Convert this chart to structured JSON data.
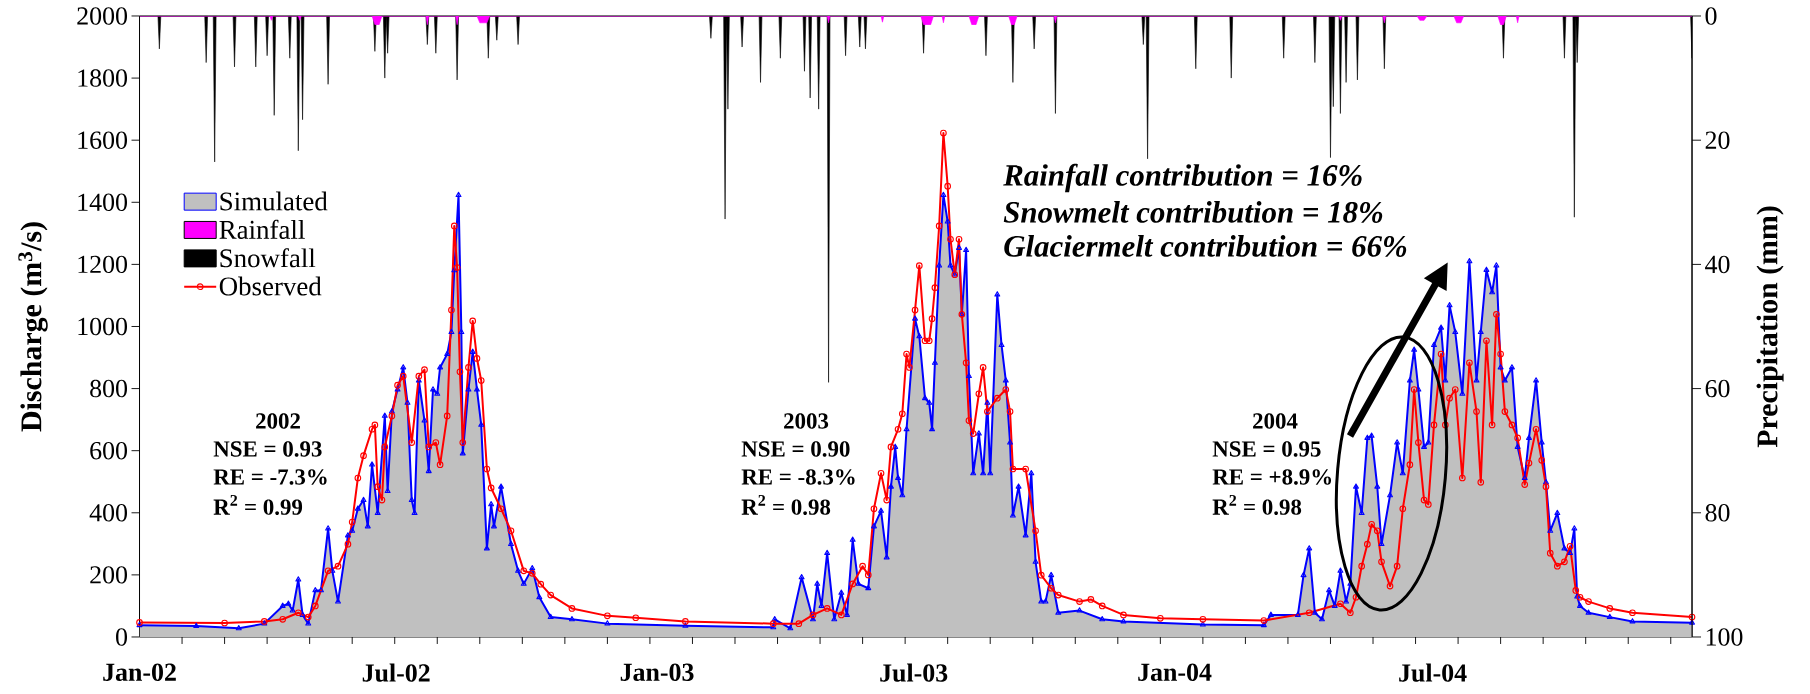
{
  "chart_data": {
    "type": "line",
    "ylabel": "Discharge (m$^{3}$/s)",
    "y2label": "Precipitation (mm)",
    "xlim": [
      "2002-01-01",
      "2004-12-31"
    ],
    "xticks": [
      {
        "value": "2002-01-01",
        "label": "Jan-02"
      },
      {
        "value": "2002-01-31",
        "label": null
      },
      {
        "value": "2002-03-02",
        "label": null
      },
      {
        "value": "2002-04-01",
        "label": null
      },
      {
        "value": "2002-05-01",
        "label": null
      },
      {
        "value": "2002-05-31",
        "label": null
      },
      {
        "value": "2002-06-30",
        "label": null
      },
      {
        "value": "2002-07-01",
        "label": "Jul-02"
      },
      {
        "value": "2002-07-30",
        "label": null
      },
      {
        "value": "2002-08-29",
        "label": null
      },
      {
        "value": "2002-09-28",
        "label": null
      },
      {
        "value": "2002-10-28",
        "label": null
      },
      {
        "value": "2002-11-27",
        "label": null
      },
      {
        "value": "2002-12-27",
        "label": null
      },
      {
        "value": "2003-01-01",
        "label": "Jan-03"
      },
      {
        "value": "2003-01-26",
        "label": null
      },
      {
        "value": "2003-02-25",
        "label": null
      },
      {
        "value": "2003-03-27",
        "label": null
      },
      {
        "value": "2003-04-26",
        "label": null
      },
      {
        "value": "2003-05-26",
        "label": null
      },
      {
        "value": "2003-06-25",
        "label": null
      },
      {
        "value": "2003-07-01",
        "label": "Jul-03"
      },
      {
        "value": "2003-07-25",
        "label": null
      },
      {
        "value": "2003-08-24",
        "label": null
      },
      {
        "value": "2003-09-23",
        "label": null
      },
      {
        "value": "2003-10-23",
        "label": null
      },
      {
        "value": "2003-11-22",
        "label": null
      },
      {
        "value": "2003-12-22",
        "label": null
      },
      {
        "value": "2004-01-01",
        "label": "Jan-04"
      },
      {
        "value": "2004-01-21",
        "label": null
      },
      {
        "value": "2004-02-20",
        "label": null
      },
      {
        "value": "2004-03-21",
        "label": null
      },
      {
        "value": "2004-04-20",
        "label": null
      },
      {
        "value": "2004-05-20",
        "label": null
      },
      {
        "value": "2004-06-19",
        "label": null
      },
      {
        "value": "2004-07-01",
        "label": "Jul-04"
      },
      {
        "value": "2004-07-19",
        "label": null
      },
      {
        "value": "2004-08-18",
        "label": null
      },
      {
        "value": "2004-09-17",
        "label": null
      },
      {
        "value": "2004-10-17",
        "label": null
      },
      {
        "value": "2004-11-16",
        "label": null
      },
      {
        "value": "2004-12-16",
        "label": null
      }
    ],
    "ylim": [
      0,
      2000
    ],
    "yticks": [
      0,
      200,
      400,
      600,
      800,
      1000,
      1200,
      1400,
      1600,
      1800,
      2000
    ],
    "y2lim": [
      100,
      0
    ],
    "y2ticks": [
      0,
      20,
      40,
      60,
      80,
      100
    ],
    "legend": "top left",
    "annotations": [
      "2002",
      "NSE = 0.93",
      "RE = -7.3%",
      "R$^{2}$ = 0.99",
      "2003",
      "NSE = 0.90",
      "RE = -8.3%",
      "R$^{2}$ = 0.98",
      "2004",
      "NSE = 0.95",
      "RE = +8.9%",
      "R$^{2}$ = 0.98",
      "Rainfall contribution = 16%",
      "Snowmelt contribution = 18%",
      "Glaciermelt contribution = 66%"
    ],
    "series": [
      {
        "name": "Simulated",
        "type": "area",
        "color": "#c0c0c0",
        "marker": "triangle",
        "x": [
          "2002-01-01",
          "2002-02-10",
          "2002-03-12",
          "2002-03-30",
          "2002-04-12",
          "2002-04-16",
          "2002-04-19",
          "2002-04-23",
          "2002-04-26",
          "2002-04-30",
          "2002-05-05",
          "2002-05-09",
          "2002-05-14",
          "2002-05-17",
          "2002-05-21",
          "2002-05-28",
          "2002-05-31",
          "2002-06-04",
          "2002-06-08",
          "2002-06-11",
          "2002-06-14",
          "2002-06-18",
          "2002-06-23",
          "2002-06-25",
          "2002-06-28",
          "2002-07-02",
          "2002-07-06",
          "2002-07-09",
          "2002-07-12",
          "2002-07-14",
          "2002-07-17",
          "2002-07-21",
          "2002-07-24",
          "2002-07-27",
          "2002-07-30",
          "2002-08-01",
          "2002-08-06",
          "2002-08-09",
          "2002-08-11",
          "2002-08-14",
          "2002-08-16",
          "2002-08-17",
          "2002-08-21",
          "2002-08-24",
          "2002-08-27",
          "2002-08-30",
          "2002-09-03",
          "2002-09-06",
          "2002-09-08",
          "2002-09-13",
          "2002-09-20",
          "2002-09-25",
          "2002-09-29",
          "2002-10-05",
          "2002-10-10",
          "2002-10-18",
          "2002-11-02",
          "2002-11-27",
          "2003-01-21",
          "2003-03-24",
          "2003-03-25",
          "2003-04-05",
          "2003-04-13",
          "2003-04-21",
          "2003-04-24",
          "2003-04-27",
          "2003-05-01",
          "2003-05-06",
          "2003-05-11",
          "2003-05-15",
          "2003-05-19",
          "2003-05-23",
          "2003-05-30",
          "2003-06-03",
          "2003-06-08",
          "2003-06-12",
          "2003-06-15",
          "2003-06-18",
          "2003-06-20",
          "2003-06-23",
          "2003-06-26",
          "2003-07-02",
          "2003-07-05",
          "2003-07-09",
          "2003-07-12",
          "2003-07-14",
          "2003-07-16",
          "2003-07-19",
          "2003-07-22",
          "2003-07-25",
          "2003-07-27",
          "2003-07-30",
          "2003-08-02",
          "2003-08-04",
          "2003-08-07",
          "2003-08-09",
          "2003-08-12",
          "2003-08-16",
          "2003-08-19",
          "2003-08-22",
          "2003-08-24",
          "2003-08-29",
          "2003-09-01",
          "2003-09-04",
          "2003-09-07",
          "2003-09-09",
          "2003-09-13",
          "2003-09-18",
          "2003-09-22",
          "2003-09-25",
          "2003-09-29",
          "2003-10-02",
          "2003-10-06",
          "2003-10-11",
          "2003-10-26",
          "2003-11-11",
          "2003-11-26",
          "2004-01-21",
          "2004-03-04",
          "2004-03-09",
          "2004-03-28",
          "2004-04-01",
          "2004-04-05",
          "2004-04-09",
          "2004-04-14",
          "2004-04-19",
          "2004-04-23",
          "2004-04-27",
          "2004-05-01",
          "2004-05-04",
          "2004-05-08",
          "2004-05-12",
          "2004-05-16",
          "2004-05-19",
          "2004-05-23",
          "2004-05-26",
          "2004-06-01",
          "2004-06-06",
          "2004-06-10",
          "2004-06-15",
          "2004-06-18",
          "2004-06-21",
          "2004-06-25",
          "2004-06-28",
          "2004-07-02",
          "2004-07-07",
          "2004-07-10",
          "2004-07-13",
          "2004-07-17",
          "2004-07-22",
          "2004-07-27",
          "2004-08-01",
          "2004-08-04",
          "2004-08-08",
          "2004-08-12",
          "2004-08-15",
          "2004-08-18",
          "2004-08-21",
          "2004-08-26",
          "2004-08-30",
          "2004-09-04",
          "2004-09-07",
          "2004-09-12",
          "2004-09-16",
          "2004-09-19",
          "2004-09-22",
          "2004-09-27",
          "2004-10-02",
          "2004-10-06",
          "2004-10-09",
          "2004-10-11",
          "2004-10-13",
          "2004-10-19",
          "2004-11-03",
          "2004-11-19",
          "2004-12-31"
        ],
        "values": [
          38,
          35,
          28,
          43,
          100,
          107,
          85,
          185,
          71,
          43,
          150,
          150,
          349,
          213,
          114,
          327,
          342,
          413,
          441,
          356,
          555,
          399,
          712,
          470,
          726,
          797,
          868,
          754,
          441,
          399,
          826,
          697,
          534,
          797,
          783,
          868,
          911,
          982,
          1181,
          1423,
          982,
          591,
          797,
          918,
          797,
          683,
          285,
          427,
          356,
          484,
          299,
          213,
          171,
          221,
          128,
          64,
          57,
          43,
          36,
          31,
          57,
          28,
          192,
          57,
          171,
          100,
          270,
          57,
          142,
          71,
          313,
          171,
          157,
          356,
          406,
          256,
          484,
          612,
          512,
          456,
          669,
          1025,
          968,
          769,
          754,
          669,
          883,
          1196,
          1423,
          1338,
          1196,
          1167,
          1253,
          1039,
          1246,
          840,
          527,
          655,
          527,
          754,
          527,
          1103,
          940,
          826,
          626,
          391,
          484,
          327,
          527,
          242,
          114,
          114,
          199,
          78,
          85,
          57,
          50,
          40,
          38,
          71,
          71,
          199,
          285,
          78,
          57,
          150,
          100,
          213,
          114,
          171,
          484,
          399,
          641,
          648,
          484,
          299,
          456,
          626,
          527,
          826,
          925,
          797,
          612,
          626,
          940,
          996,
          826,
          1068,
          982,
          783,
          1210,
          826,
          982,
          1182,
          1110,
          1196,
          868,
          826,
          868,
          612,
          512,
          641,
          826,
          626,
          498,
          342,
          399,
          285,
          270,
          349,
          130,
          100,
          78,
          64,
          50,
          46
        ]
      },
      {
        "name": "Rainfall",
        "type": "area",
        "axis": "y2",
        "color": "#ff00ff",
        "x": [
          "2002-01-01",
          "2002-04-03",
          "2002-04-04",
          "2002-04-05",
          "2002-04-23",
          "2002-04-24",
          "2002-04-25",
          "2002-06-14",
          "2002-06-16",
          "2002-06-19",
          "2002-06-21",
          "2002-07-22",
          "2002-07-23",
          "2002-07-24",
          "2002-08-12",
          "2002-08-13",
          "2002-08-14",
          "2002-08-27",
          "2002-08-29",
          "2002-09-03",
          "2002-09-05",
          "2003-05-01",
          "2003-05-02",
          "2003-05-03",
          "2003-06-08",
          "2003-06-09",
          "2003-06-10",
          "2003-07-06",
          "2003-07-08",
          "2003-07-13",
          "2003-07-15",
          "2003-07-21",
          "2003-07-22",
          "2003-07-23",
          "2003-08-09",
          "2003-08-11",
          "2003-08-14",
          "2003-08-16",
          "2003-09-06",
          "2003-09-08",
          "2003-09-10",
          "2003-09-12",
          "2003-10-08",
          "2003-10-09",
          "2003-10-10",
          "2004-04-26",
          "2004-04-27",
          "2004-04-28",
          "2004-05-27",
          "2004-05-28",
          "2004-05-29",
          "2004-06-20",
          "2004-06-22",
          "2004-06-25",
          "2004-06-27",
          "2004-07-16",
          "2004-07-18",
          "2004-07-21",
          "2004-07-23",
          "2004-08-16",
          "2004-08-18",
          "2004-08-20",
          "2004-08-22",
          "2004-08-29",
          "2004-08-30",
          "2004-08-31",
          "2004-12-31"
        ],
        "values": [
          0,
          0,
          0.7,
          0,
          0,
          0.7,
          0,
          0,
          1.4,
          1.4,
          0,
          0,
          1.4,
          0,
          0,
          1.4,
          0,
          0,
          1.1,
          1.1,
          0,
          0,
          1.1,
          0,
          0,
          1,
          0,
          0,
          1.4,
          1.4,
          0,
          0,
          1.1,
          0,
          0,
          1.4,
          1.4,
          0,
          0,
          1.4,
          1.4,
          0,
          0,
          1.1,
          0,
          0,
          0.7,
          0,
          0,
          1.1,
          0,
          0,
          0.7,
          0.7,
          0,
          0,
          1.1,
          1.1,
          0,
          0,
          1.4,
          1.4,
          0,
          0,
          1.1,
          0,
          0
        ]
      },
      {
        "name": "Snowfall",
        "type": "area",
        "axis": "y2",
        "color": "#000000",
        "x": [
          "2002-01-01",
          "2002-01-14",
          "2002-01-15",
          "2002-01-16",
          "2002-02-16",
          "2002-02-17",
          "2002-02-18",
          "2002-02-22",
          "2002-02-23",
          "2002-02-24",
          "2002-03-08",
          "2002-03-09",
          "2002-03-10",
          "2002-03-23",
          "2002-03-24",
          "2002-03-25",
          "2002-03-31",
          "2002-04-01",
          "2002-04-02",
          "2002-04-05",
          "2002-04-06",
          "2002-04-07",
          "2002-04-16",
          "2002-04-17",
          "2002-04-18",
          "2002-04-22",
          "2002-04-23",
          "2002-04-24",
          "2002-04-25",
          "2002-04-26",
          "2002-04-27",
          "2002-05-13",
          "2002-05-14",
          "2002-05-15",
          "2002-06-15",
          "2002-06-16",
          "2002-06-17",
          "2002-06-22",
          "2002-06-23",
          "2002-06-24",
          "2002-06-25",
          "2002-06-26",
          "2002-07-22",
          "2002-07-23",
          "2002-07-24",
          "2002-07-28",
          "2002-07-29",
          "2002-07-30",
          "2002-08-12",
          "2002-08-13",
          "2002-08-14",
          "2002-09-03",
          "2002-09-04",
          "2002-09-05",
          "2002-09-09",
          "2002-09-10",
          "2002-09-11",
          "2002-09-24",
          "2002-09-25",
          "2002-09-26",
          "2003-02-07",
          "2003-02-08",
          "2003-02-09",
          "2003-02-17",
          "2003-02-18",
          "2003-02-19",
          "2003-02-20",
          "2003-02-21",
          "2003-03-01",
          "2003-03-02",
          "2003-03-03",
          "2003-03-14",
          "2003-03-15",
          "2003-03-16",
          "2003-03-28",
          "2003-03-29",
          "2003-03-30",
          "2003-04-14",
          "2003-04-15",
          "2003-04-16",
          "2003-04-18",
          "2003-04-19",
          "2003-04-20",
          "2003-04-24",
          "2003-04-25",
          "2003-04-26",
          "2003-05-01",
          "2003-05-02",
          "2003-05-03",
          "2003-05-13",
          "2003-05-14",
          "2003-05-15",
          "2003-05-23",
          "2003-05-24",
          "2003-05-25",
          "2003-05-27",
          "2003-05-28",
          "2003-05-29",
          "2003-07-07",
          "2003-07-08",
          "2003-07-09",
          "2003-08-20",
          "2003-08-21",
          "2003-08-22",
          "2003-09-08",
          "2003-09-09",
          "2003-09-10",
          "2003-09-23",
          "2003-09-24",
          "2003-09-25",
          "2003-10-08",
          "2003-10-09",
          "2003-10-10",
          "2003-12-09",
          "2003-12-10",
          "2003-12-11",
          "2003-12-12",
          "2003-12-13",
          "2003-12-14",
          "2004-01-15",
          "2004-01-16",
          "2004-01-17",
          "2004-02-09",
          "2004-02-10",
          "2004-02-11",
          "2004-03-17",
          "2004-03-18",
          "2004-03-19",
          "2004-04-08",
          "2004-04-09",
          "2004-04-10",
          "2004-04-19",
          "2004-04-20",
          "2004-04-21",
          "2004-04-22",
          "2004-04-23",
          "2004-04-26",
          "2004-04-27",
          "2004-04-28",
          "2004-04-30",
          "2004-05-01",
          "2004-05-02",
          "2004-05-08",
          "2004-05-09",
          "2004-05-10",
          "2004-05-27",
          "2004-05-28",
          "2004-05-29",
          "2004-08-19",
          "2004-08-20",
          "2004-08-21",
          "2004-10-01",
          "2004-10-02",
          "2004-10-03",
          "2004-10-08",
          "2004-10-09",
          "2004-10-10",
          "2004-10-11",
          "2004-10-12",
          "2004-12-30",
          "2004-12-31"
        ],
        "values": [
          0,
          0,
          5.3,
          0,
          0,
          7.5,
          0,
          0,
          23.5,
          0,
          0,
          8.2,
          0,
          0,
          8.2,
          0,
          0,
          6.4,
          0,
          0,
          16,
          0,
          0,
          6.8,
          0,
          0,
          21.7,
          0,
          0,
          16.7,
          0,
          0,
          11,
          0,
          0,
          5.7,
          0,
          0,
          10,
          0,
          6,
          0,
          0,
          4.6,
          0,
          0,
          6,
          0,
          0,
          10.3,
          0,
          0,
          6.8,
          0,
          0,
          3.9,
          0,
          0,
          4.6,
          0,
          0,
          3.6,
          0,
          0,
          32.7,
          0,
          15,
          0,
          0,
          5,
          0,
          0,
          10.7,
          0,
          0,
          6.8,
          0,
          0,
          8.9,
          0,
          0,
          13.2,
          0,
          0,
          15,
          0,
          0,
          59,
          0,
          0,
          6.4,
          0,
          0,
          5,
          0,
          0,
          5.3,
          0,
          0,
          6,
          0,
          0,
          6.4,
          0,
          0,
          10.7,
          0,
          0,
          5.3,
          0,
          0,
          15.7,
          0,
          0,
          4.6,
          0,
          0,
          23,
          0,
          0,
          8.5,
          0,
          0,
          10,
          0,
          0,
          6.8,
          0,
          0,
          7.5,
          0,
          0,
          22.8,
          4,
          14.6,
          0,
          0,
          15.7,
          0,
          0,
          10.7,
          0,
          0,
          10.3,
          0,
          0,
          8.5,
          0,
          0,
          6.8,
          0,
          0,
          6.8,
          0,
          0,
          32.4,
          0,
          7.5,
          0,
          0,
          6.8
        ]
      },
      {
        "name": "Observed",
        "color": "#ff0000",
        "marker": "circle",
        "x": [
          "2002-01-01",
          "2002-03-02",
          "2002-03-30",
          "2002-04-12",
          "2002-04-23",
          "2002-04-30",
          "2002-05-05",
          "2002-05-14",
          "2002-05-21",
          "2002-05-28",
          "2002-05-31",
          "2002-06-04",
          "2002-06-08",
          "2002-06-14",
          "2002-06-16",
          "2002-06-18",
          "2002-06-21",
          "2002-06-23",
          "2002-06-28",
          "2002-07-02",
          "2002-07-06",
          "2002-07-12",
          "2002-07-17",
          "2002-07-21",
          "2002-07-24",
          "2002-07-29",
          "2002-08-01",
          "2002-08-06",
          "2002-08-09",
          "2002-08-11",
          "2002-08-13",
          "2002-08-15",
          "2002-08-17",
          "2002-08-21",
          "2002-08-24",
          "2002-08-27",
          "2002-08-30",
          "2002-09-03",
          "2002-09-06",
          "2002-09-13",
          "2002-09-20",
          "2002-09-29",
          "2002-10-05",
          "2002-10-11",
          "2002-10-18",
          "2002-11-02",
          "2002-11-27",
          "2002-12-17",
          "2003-01-21",
          "2003-03-24",
          "2003-04-11",
          "2003-04-21",
          "2003-05-01",
          "2003-05-11",
          "2003-05-19",
          "2003-05-26",
          "2003-05-30",
          "2003-06-03",
          "2003-06-08",
          "2003-06-12",
          "2003-06-15",
          "2003-06-20",
          "2003-06-23",
          "2003-06-26",
          "2003-06-28",
          "2003-07-02",
          "2003-07-05",
          "2003-07-09",
          "2003-07-12",
          "2003-07-14",
          "2003-07-16",
          "2003-07-19",
          "2003-07-22",
          "2003-07-25",
          "2003-07-27",
          "2003-07-30",
          "2003-08-02",
          "2003-08-04",
          "2003-08-07",
          "2003-08-09",
          "2003-08-12",
          "2003-08-16",
          "2003-08-19",
          "2003-08-22",
          "2003-08-29",
          "2003-09-04",
          "2003-09-07",
          "2003-09-09",
          "2003-09-18",
          "2003-09-25",
          "2003-09-29",
          "2003-10-06",
          "2003-10-11",
          "2003-10-26",
          "2003-11-03",
          "2003-11-11",
          "2003-11-26",
          "2003-12-22",
          "2004-01-21",
          "2004-03-04",
          "2004-04-05",
          "2004-04-27",
          "2004-05-04",
          "2004-05-08",
          "2004-05-12",
          "2004-05-16",
          "2004-05-19",
          "2004-05-23",
          "2004-05-26",
          "2004-06-01",
          "2004-06-06",
          "2004-06-10",
          "2004-06-15",
          "2004-06-18",
          "2004-06-21",
          "2004-06-25",
          "2004-06-28",
          "2004-07-02",
          "2004-07-07",
          "2004-07-10",
          "2004-07-13",
          "2004-07-17",
          "2004-07-22",
          "2004-07-27",
          "2004-08-01",
          "2004-08-04",
          "2004-08-08",
          "2004-08-12",
          "2004-08-15",
          "2004-08-18",
          "2004-08-21",
          "2004-08-26",
          "2004-08-30",
          "2004-09-04",
          "2004-09-07",
          "2004-09-12",
          "2004-09-16",
          "2004-09-19",
          "2004-09-22",
          "2004-09-27",
          "2004-10-02",
          "2004-10-06",
          "2004-10-10",
          "2004-10-13",
          "2004-10-19",
          "2004-11-03",
          "2004-11-19",
          "2004-12-31"
        ],
        "values": [
          47,
          45,
          50,
          57,
          78,
          64,
          100,
          213,
          228,
          299,
          370,
          512,
          584,
          669,
          683,
          484,
          441,
          612,
          712,
          811,
          840,
          626,
          840,
          861,
          612,
          626,
          555,
          712,
          1053,
          1324,
          1190,
          854,
          626,
          868,
          1018,
          897,
          826,
          541,
          480,
          413,
          342,
          213,
          205,
          170,
          135,
          92,
          68,
          62,
          50,
          43,
          43,
          71,
          92,
          71,
          171,
          228,
          200,
          413,
          527,
          441,
          612,
          669,
          719,
          911,
          868,
          1053,
          1196,
          954,
          954,
          1025,
          1125,
          1324,
          1623,
          1452,
          1281,
          1167,
          1281,
          1039,
          883,
          697,
          655,
          783,
          868,
          726,
          769,
          797,
          726,
          541,
          541,
          342,
          199,
          157,
          135,
          114,
          121,
          100,
          71,
          60,
          57,
          53,
          78,
          107,
          78,
          128,
          228,
          299,
          363,
          342,
          242,
          164,
          228,
          413,
          555,
          797,
          626,
          441,
          427,
          683,
          911,
          683,
          769,
          797,
          512,
          883,
          726,
          498,
          954,
          683,
          1039,
          911,
          726,
          683,
          641,
          491,
          560,
          669,
          569,
          484,
          270,
          228,
          242,
          292,
          150,
          128,
          114,
          92,
          78,
          64
        ]
      }
    ]
  }
}
